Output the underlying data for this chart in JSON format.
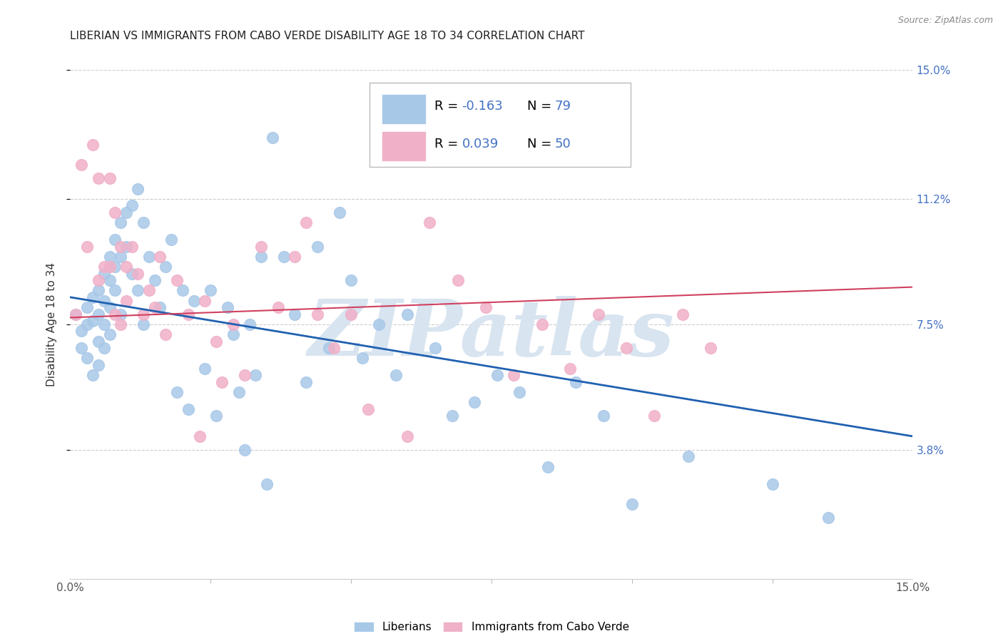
{
  "title": "LIBERIAN VS IMMIGRANTS FROM CABO VERDE DISABILITY AGE 18 TO 34 CORRELATION CHART",
  "source": "Source: ZipAtlas.com",
  "ylabel": "Disability Age 18 to 34",
  "xlim": [
    0.0,
    0.15
  ],
  "ylim": [
    0.0,
    0.15
  ],
  "ytick_positions": [
    0.038,
    0.075,
    0.112,
    0.15
  ],
  "ytick_labels": [
    "3.8%",
    "7.5%",
    "11.2%",
    "15.0%"
  ],
  "xtick_minor": [
    0.0,
    0.025,
    0.05,
    0.075,
    0.1,
    0.125,
    0.15
  ],
  "blue_color": "#a8c8e8",
  "pink_color": "#f0b0c8",
  "blue_edge_color": "#a8c8e8",
  "pink_edge_color": "#f0b0c8",
  "blue_line_color": "#2060b0",
  "pink_line_color": "#d04060",
  "legend_text_color": "#4472c4",
  "watermark": "ZIPatlas",
  "watermark_color": "#d8e4f0",
  "title_fontsize": 11,
  "axis_label_fontsize": 11,
  "tick_fontsize": 11,
  "legend_fontsize": 13,
  "blue_trend_y_start": 0.083,
  "blue_trend_y_end": 0.042,
  "pink_trend_y_start": 0.077,
  "pink_trend_y_end": 0.086,
  "blue_scatter_x": [
    0.001,
    0.002,
    0.002,
    0.003,
    0.003,
    0.003,
    0.004,
    0.004,
    0.004,
    0.005,
    0.005,
    0.005,
    0.005,
    0.006,
    0.006,
    0.006,
    0.006,
    0.007,
    0.007,
    0.007,
    0.007,
    0.008,
    0.008,
    0.008,
    0.009,
    0.009,
    0.009,
    0.01,
    0.01,
    0.011,
    0.011,
    0.012,
    0.012,
    0.013,
    0.013,
    0.014,
    0.015,
    0.016,
    0.017,
    0.018,
    0.019,
    0.02,
    0.021,
    0.022,
    0.024,
    0.025,
    0.026,
    0.028,
    0.029,
    0.03,
    0.031,
    0.032,
    0.033,
    0.034,
    0.035,
    0.036,
    0.038,
    0.04,
    0.042,
    0.044,
    0.046,
    0.048,
    0.05,
    0.052,
    0.055,
    0.058,
    0.06,
    0.065,
    0.068,
    0.072,
    0.076,
    0.08,
    0.085,
    0.09,
    0.095,
    0.1,
    0.11,
    0.125,
    0.135
  ],
  "blue_scatter_y": [
    0.078,
    0.073,
    0.068,
    0.08,
    0.075,
    0.065,
    0.083,
    0.076,
    0.06,
    0.085,
    0.078,
    0.07,
    0.063,
    0.09,
    0.082,
    0.075,
    0.068,
    0.095,
    0.088,
    0.08,
    0.072,
    0.1,
    0.092,
    0.085,
    0.105,
    0.095,
    0.078,
    0.108,
    0.098,
    0.11,
    0.09,
    0.115,
    0.085,
    0.105,
    0.075,
    0.095,
    0.088,
    0.08,
    0.092,
    0.1,
    0.055,
    0.085,
    0.05,
    0.082,
    0.062,
    0.085,
    0.048,
    0.08,
    0.072,
    0.055,
    0.038,
    0.075,
    0.06,
    0.095,
    0.028,
    0.13,
    0.095,
    0.078,
    0.058,
    0.098,
    0.068,
    0.108,
    0.088,
    0.065,
    0.075,
    0.06,
    0.078,
    0.068,
    0.048,
    0.052,
    0.06,
    0.055,
    0.033,
    0.058,
    0.048,
    0.022,
    0.036,
    0.028,
    0.018
  ],
  "pink_scatter_x": [
    0.001,
    0.002,
    0.003,
    0.004,
    0.005,
    0.005,
    0.006,
    0.007,
    0.007,
    0.008,
    0.008,
    0.009,
    0.009,
    0.01,
    0.01,
    0.011,
    0.012,
    0.013,
    0.014,
    0.015,
    0.016,
    0.017,
    0.019,
    0.021,
    0.023,
    0.024,
    0.026,
    0.027,
    0.029,
    0.031,
    0.034,
    0.037,
    0.04,
    0.042,
    0.044,
    0.047,
    0.05,
    0.053,
    0.06,
    0.064,
    0.069,
    0.074,
    0.079,
    0.084,
    0.089,
    0.094,
    0.099,
    0.104,
    0.109,
    0.114
  ],
  "pink_scatter_y": [
    0.078,
    0.122,
    0.098,
    0.128,
    0.088,
    0.118,
    0.092,
    0.118,
    0.092,
    0.108,
    0.078,
    0.098,
    0.075,
    0.092,
    0.082,
    0.098,
    0.09,
    0.078,
    0.085,
    0.08,
    0.095,
    0.072,
    0.088,
    0.078,
    0.042,
    0.082,
    0.07,
    0.058,
    0.075,
    0.06,
    0.098,
    0.08,
    0.095,
    0.105,
    0.078,
    0.068,
    0.078,
    0.05,
    0.042,
    0.105,
    0.088,
    0.08,
    0.06,
    0.075,
    0.062,
    0.078,
    0.068,
    0.048,
    0.078,
    0.068
  ]
}
